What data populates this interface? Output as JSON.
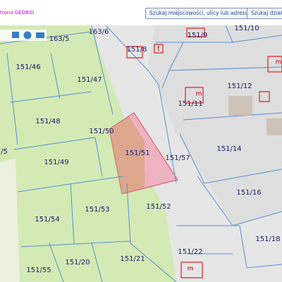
{
  "header": {
    "link": "trona GEOBID",
    "buttons": [
      "Szukaj miejscowości, ulicy lub adresu",
      "Szukaj działk"
    ]
  },
  "parcels": [
    "163/5",
    "163/6",
    "151/9",
    "151/10",
    "151/8",
    "151/46",
    "151/47",
    "151/12",
    "151/11",
    "151/48",
    "151/50",
    "151/14",
    "151/51",
    "151/57",
    "151/49",
    "/5",
    "151/16",
    "151/52",
    "151/53",
    "151/54",
    "151/18",
    "151/22",
    "151/20",
    "151/21",
    "151/55"
  ],
  "buildings": [
    "t",
    "m",
    "m",
    "m"
  ]
}
